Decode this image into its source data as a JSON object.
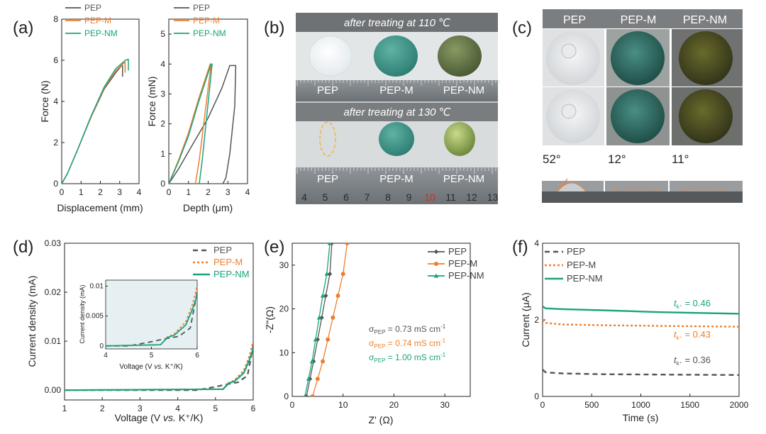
{
  "colors": {
    "pep": "#555555",
    "pepm": "#ee7f2d",
    "pepnm": "#1aa37e"
  },
  "panel_labels": [
    "(a)",
    "(b)",
    "(c)",
    "(d)",
    "(e)",
    "(f)"
  ],
  "chart_data": [
    {
      "id": "a1",
      "type": "line",
      "xlabel": "Displacement (mm)",
      "ylabel": "Force (N)",
      "xlim": [
        0,
        4
      ],
      "ylim": [
        0,
        8
      ],
      "xticks": [
        0,
        1,
        2,
        3,
        4
      ],
      "yticks": [
        0,
        2,
        4,
        6,
        8
      ],
      "legend": [
        "PEP",
        "PEP-M",
        "PEP-NM"
      ],
      "series": [
        {
          "name": "PEP",
          "x": [
            0,
            0.3,
            0.8,
            1.5,
            2.2,
            2.8,
            3.1,
            3.15,
            3.15
          ],
          "y": [
            0,
            0.5,
            1.6,
            3.2,
            4.6,
            5.4,
            5.75,
            5.75,
            5.2
          ]
        },
        {
          "name": "PEP-M",
          "x": [
            0,
            0.3,
            0.8,
            1.5,
            2.2,
            2.8,
            3.25,
            3.28,
            3.28
          ],
          "y": [
            0,
            0.5,
            1.6,
            3.2,
            4.65,
            5.5,
            5.9,
            5.9,
            5.4
          ]
        },
        {
          "name": "PEP-NM",
          "x": [
            0,
            0.3,
            0.8,
            1.5,
            2.2,
            2.8,
            3.3,
            3.45,
            3.45
          ],
          "y": [
            0,
            0.5,
            1.6,
            3.25,
            4.7,
            5.6,
            6.0,
            6.05,
            5.5
          ]
        }
      ]
    },
    {
      "id": "a2",
      "type": "line",
      "xlabel": "Depth (",
      "xlabel_mu": "μ",
      "xlabel_end": "m)",
      "ylabel": "Force (mN)",
      "xlim": [
        0,
        4
      ],
      "ylim": [
        0,
        5.5
      ],
      "xticks": [
        0,
        1,
        2,
        3,
        4
      ],
      "yticks": [
        0,
        1,
        2,
        3,
        4,
        5
      ],
      "legend": [
        "PEP",
        "PEP-M",
        "PEP-NM"
      ],
      "series": [
        {
          "name": "PEP",
          "x": [
            0,
            0.5,
            1.2,
            2.0,
            2.7,
            3.1,
            3.4,
            3.35,
            3.1,
            2.9,
            2.75
          ],
          "y": [
            0,
            0.5,
            1.3,
            2.2,
            3.2,
            3.95,
            3.95,
            2.6,
            1.0,
            0.2,
            0
          ]
        },
        {
          "name": "PEP-M",
          "x": [
            0,
            0.5,
            1.0,
            1.5,
            1.9,
            2.1,
            2.15,
            1.85,
            1.55,
            1.35
          ],
          "y": [
            0,
            0.8,
            1.7,
            2.8,
            3.6,
            4.0,
            4.0,
            2.4,
            0.8,
            0
          ]
        },
        {
          "name": "PEP-NM",
          "x": [
            0,
            0.5,
            1.0,
            1.5,
            1.95,
            2.15,
            2.2,
            1.95,
            1.7,
            1.55
          ],
          "y": [
            0,
            0.75,
            1.6,
            2.7,
            3.6,
            4.0,
            4.0,
            2.4,
            0.8,
            0
          ]
        }
      ]
    },
    {
      "id": "d",
      "type": "line",
      "xlabel": "Voltage (V ",
      "xlabel_it": "vs.",
      "xlabel_end": " K⁺/K)",
      "ylabel": "Current density (mA)",
      "xlim": [
        1,
        6
      ],
      "ylim": [
        -0.002,
        0.03
      ],
      "xticks": [
        1,
        2,
        3,
        4,
        5,
        6
      ],
      "yticks": [
        0.0,
        0.01,
        0.02,
        0.03
      ],
      "ytick_labels": [
        "0.00",
        "0.01",
        "0.02",
        "0.03"
      ],
      "legend": [
        "PEP",
        "PEP-M",
        "PEP-NM"
      ],
      "series": [
        {
          "name": "PEP",
          "x": [
            1,
            4.5,
            5.0,
            5.3,
            5.6,
            5.85,
            6.0
          ],
          "y": [
            0,
            0,
            0.0007,
            0.0012,
            0.0016,
            0.003,
            0.009
          ]
        },
        {
          "name": "PEP-M",
          "x": [
            1,
            5.2,
            5.35,
            5.5,
            5.75,
            5.9,
            6.0
          ],
          "y": [
            0,
            0.0002,
            0.0015,
            0.002,
            0.004,
            0.007,
            0.01
          ]
        },
        {
          "name": "PEP-NM",
          "x": [
            1,
            5.2,
            5.35,
            5.5,
            5.75,
            5.9,
            6.0
          ],
          "y": [
            0,
            0.0002,
            0.0014,
            0.0018,
            0.0035,
            0.0062,
            0.0085
          ]
        }
      ],
      "inset": {
        "xlabel": "Voltage (V ",
        "xlabel_it": "vs.",
        "xlabel_end": " K⁺/K)",
        "ylabel": "Current density (mA)",
        "xlim": [
          4,
          6
        ],
        "ylim": [
          -0.0005,
          0.011
        ],
        "xticks": [
          4,
          5,
          6
        ],
        "yticks": [
          0,
          0.005,
          0.01
        ],
        "ytick_labels": [
          "0",
          "0.005",
          "0.01"
        ]
      }
    },
    {
      "id": "e",
      "type": "line",
      "xlabel": "Z' (Ω)",
      "ylabel": "-Z\"(Ω)",
      "xlim": [
        0,
        35
      ],
      "ylim": [
        0,
        35
      ],
      "xticks": [
        0,
        10,
        20,
        30
      ],
      "yticks": [
        0,
        10,
        20,
        30
      ],
      "legend": [
        "PEP",
        "PEP-M",
        "PEP-NM"
      ],
      "series": [
        {
          "name": "PEP",
          "x": [
            2.8,
            3.5,
            4.2,
            5.0,
            5.8,
            6.6,
            7.4,
            7.8
          ],
          "y": [
            0,
            4,
            8,
            13,
            18,
            23,
            28,
            35
          ]
        },
        {
          "name": "PEP-M",
          "x": [
            4.0,
            5.0,
            6.0,
            7.0,
            8.0,
            9.0,
            10.0,
            10.8
          ],
          "y": [
            0,
            4,
            8,
            13,
            18,
            23,
            28,
            35
          ]
        },
        {
          "name": "PEP-NM",
          "x": [
            2.5,
            3.2,
            3.9,
            4.6,
            5.3,
            6.0,
            6.8,
            7.4
          ],
          "y": [
            0,
            4,
            8,
            13,
            18,
            23,
            28,
            35
          ]
        }
      ],
      "annotations": [
        {
          "pre": "σ",
          "sub": "PEP",
          "post": " = 0.73 mS cm",
          "sup": "-1",
          "series": "PEP"
        },
        {
          "pre": "σ",
          "sub": "PEP",
          "post": " = 0.74 mS cm",
          "sup": "-1",
          "series": "PEP-M"
        },
        {
          "pre": "σ",
          "sub": "PEP",
          "post": " = 1.00 mS cm",
          "sup": "-1",
          "series": "PEP-NM"
        }
      ]
    },
    {
      "id": "f",
      "type": "line",
      "xlabel": "Time (s)",
      "ylabel": "Current (μA)",
      "xlim": [
        0,
        2000
      ],
      "ylim": [
        0,
        4
      ],
      "xticks": [
        0,
        500,
        1000,
        1500,
        2000
      ],
      "yticks": [
        0,
        2,
        4
      ],
      "legend": [
        "PEP",
        "PEP-M",
        "PEP-NM"
      ],
      "series": [
        {
          "name": "PEP",
          "x": [
            0,
            30,
            200,
            600,
            1200,
            2000
          ],
          "y": [
            0.7,
            0.63,
            0.6,
            0.58,
            0.57,
            0.56
          ]
        },
        {
          "name": "PEP-M",
          "x": [
            0,
            30,
            200,
            600,
            1200,
            2000
          ],
          "y": [
            2.0,
            1.92,
            1.88,
            1.86,
            1.84,
            1.82
          ]
        },
        {
          "name": "PEP-NM",
          "x": [
            0,
            30,
            200,
            600,
            1200,
            2000
          ],
          "y": [
            2.35,
            2.3,
            2.28,
            2.25,
            2.2,
            2.16
          ]
        }
      ],
      "annotations": [
        {
          "italic": "t",
          "sub": "k⁺",
          "post": " = 0.46",
          "series": "PEP-NM"
        },
        {
          "italic": "t",
          "sub": "k⁺",
          "post": " = 0.43",
          "series": "PEP-M"
        },
        {
          "italic": "t",
          "sub": "k⁺",
          "post": " = 0.36",
          "series": "PEP"
        }
      ]
    }
  ],
  "panel_b": {
    "banner_top": "after treating at 110 ℃",
    "banner_bottom": "after treating at 130 ℃",
    "labels": [
      "PEP",
      "PEP-M",
      "PEP-NM"
    ],
    "ruler_numbers": [
      "4",
      "5",
      "6",
      "7",
      "8",
      "9",
      "10",
      "11",
      "12",
      "13"
    ]
  },
  "panel_c": {
    "headers": [
      "PEP",
      "PEP-M",
      "PEP-NM"
    ],
    "angles": [
      "52°",
      "12°",
      "11°"
    ]
  }
}
